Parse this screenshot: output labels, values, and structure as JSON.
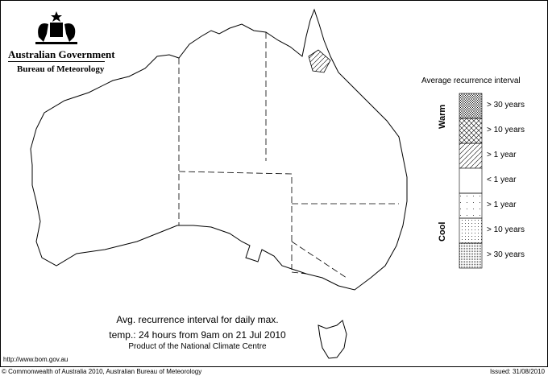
{
  "header": {
    "government": "Australian Government",
    "bureau": "Bureau of Meteorology"
  },
  "legend": {
    "title": "Average recurrence interval",
    "warm_label": "Warm",
    "cool_label": "Cool",
    "items": [
      {
        "label": "> 30 years",
        "pattern": "dense-crosshatch",
        "group": "warm"
      },
      {
        "label": "> 10 years",
        "pattern": "crosshatch",
        "group": "warm"
      },
      {
        "label": "> 1 year",
        "pattern": "diagonal-hatch",
        "group": "warm"
      },
      {
        "label": "< 1 year",
        "pattern": "blank",
        "group": "neutral"
      },
      {
        "label": "> 1 year",
        "pattern": "sparse-dots",
        "group": "cool"
      },
      {
        "label": "> 10 years",
        "pattern": "dots",
        "group": "cool"
      },
      {
        "label": "> 30 years",
        "pattern": "dense-dots",
        "group": "cool"
      }
    ]
  },
  "caption": {
    "line1": "Avg. recurrence interval for daily max.",
    "line2": "temp.: 24 hours from 9am on 21 Jul 2010",
    "line3": "Product of the National Climate Centre"
  },
  "footer": {
    "url": "http://www.bom.gov.au",
    "copyright": "© Commonwealth of Australia 2010, Australian Bureau of Meteorology",
    "issued": "Issued: 31/08/2010"
  },
  "map": {
    "region": "Australia",
    "highlighted_area": {
      "location": "north Queensland",
      "category": "> 1 year",
      "group": "warm"
    }
  }
}
